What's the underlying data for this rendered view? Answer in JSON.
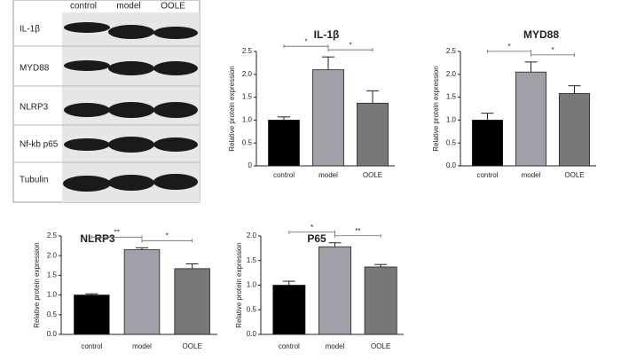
{
  "blot": {
    "lanes": [
      "control",
      "model",
      "OOLE"
    ],
    "proteins": [
      "IL-1β",
      "MYD88",
      "NLRP3",
      "Nf-kb p65",
      "Tubulin"
    ]
  },
  "chart_data": [
    {
      "type": "bar",
      "title": "IL-1β",
      "ylabel": "Relative protein expression",
      "categories": [
        "control",
        "model",
        "OOLE"
      ],
      "values": [
        1.0,
        2.1,
        1.37
      ],
      "errors": [
        0.07,
        0.28,
        0.27
      ],
      "colors": [
        "#000000",
        "#a0a0a8",
        "#787878"
      ],
      "ylim": [
        0,
        2.5
      ],
      "yticks": [
        0,
        0.5,
        {
          "value": 1,
          "label": "1.0"
        },
        1.5,
        {
          "value": 2,
          "label": "2.0"
        },
        2.5
      ],
      "annotations": [
        {
          "from": 0,
          "to": 1,
          "label": "*"
        },
        {
          "from": 1,
          "to": 2,
          "label": "*"
        }
      ]
    },
    {
      "type": "bar",
      "title": "MYD88",
      "ylabel": "Relative protein expression",
      "categories": [
        "control",
        "model",
        "OOLE"
      ],
      "values": [
        1.0,
        2.05,
        1.58
      ],
      "errors": [
        0.15,
        0.22,
        0.17
      ],
      "colors": [
        "#000000",
        "#a0a0a8",
        "#787878"
      ],
      "ylim": [
        0,
        2.5
      ],
      "yticks": [
        {
          "value": 0,
          "label": "0.0"
        },
        0.5,
        {
          "value": 1,
          "label": "1.0"
        },
        1.5,
        {
          "value": 2,
          "label": "2.0"
        },
        2.5
      ],
      "annotations": [
        {
          "from": 0,
          "to": 1,
          "label": "*"
        },
        {
          "from": 1,
          "to": 2,
          "label": "*"
        }
      ]
    },
    {
      "type": "bar",
      "title": "NLRP3",
      "ylabel": "Relative protein expression",
      "categories": [
        "control",
        "model",
        "OOLE"
      ],
      "values": [
        1.0,
        2.15,
        1.67
      ],
      "errors": [
        0.03,
        0.05,
        0.12
      ],
      "colors": [
        "#000000",
        "#a0a0a8",
        "#787878"
      ],
      "ylim": [
        0,
        2.5
      ],
      "yticks": [
        {
          "value": 0,
          "label": "0.0"
        },
        0.5,
        {
          "value": 1,
          "label": "1.0"
        },
        1.5,
        {
          "value": 2,
          "label": "2.0"
        },
        2.5
      ],
      "annotations": [
        {
          "from": 0,
          "to": 1,
          "label": "**"
        },
        {
          "from": 1,
          "to": 2,
          "label": "*"
        }
      ]
    },
    {
      "type": "bar",
      "title": "P65",
      "ylabel": "Relative protein expression",
      "categories": [
        "control",
        "model",
        "OOLE"
      ],
      "values": [
        1.0,
        1.78,
        1.37
      ],
      "errors": [
        0.08,
        0.08,
        0.05
      ],
      "colors": [
        "#000000",
        "#a0a0a8",
        "#787878"
      ],
      "ylim": [
        0,
        2
      ],
      "yticks": [
        {
          "value": 0,
          "label": "0.0"
        },
        0.5,
        {
          "value": 1,
          "label": "1.0"
        },
        1.5,
        {
          "value": 2,
          "label": "2.0"
        }
      ],
      "annotations": [
        {
          "from": 0,
          "to": 1,
          "label": "*"
        },
        {
          "from": 1,
          "to": 2,
          "label": "**"
        }
      ]
    }
  ]
}
